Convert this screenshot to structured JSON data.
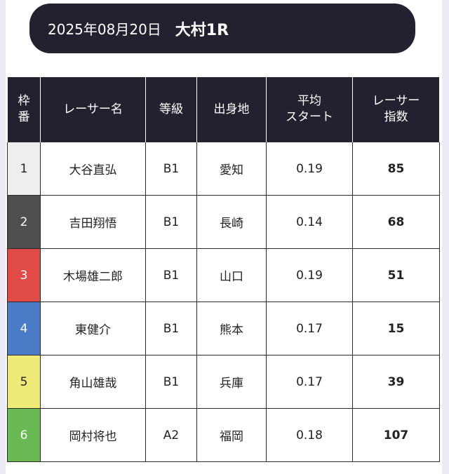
{
  "header": {
    "date": "2025年08月20日",
    "venue": "大村1R"
  },
  "table": {
    "columns": [
      "枠\n番",
      "レーサー名",
      "等級",
      "出身地",
      "平均\nスタート",
      "レーサー\n指数"
    ],
    "rows": [
      [
        1,
        "大谷直弘",
        "B1",
        "愛知",
        0.19,
        85
      ],
      [
        2,
        "吉田翔悟",
        "B1",
        "長崎",
        0.14,
        68
      ],
      [
        3,
        "木場雄二郎",
        "B1",
        "山口",
        0.19,
        51
      ],
      [
        4,
        "東健介",
        "B1",
        "熊本",
        0.17,
        15
      ],
      [
        5,
        "角山雄哉",
        "B1",
        "兵庫",
        0.17,
        39
      ],
      [
        6,
        "岡村将也",
        "A2",
        "福岡",
        0.18,
        107
      ]
    ]
  }
}
